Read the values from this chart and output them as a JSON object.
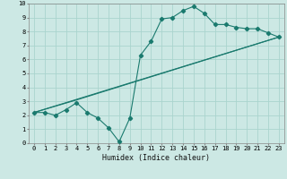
{
  "title": "",
  "xlabel": "Humidex (Indice chaleur)",
  "xlim": [
    -0.5,
    23.5
  ],
  "ylim": [
    0,
    10
  ],
  "bg_color": "#cce8e4",
  "grid_color": "#aad4ce",
  "line_color": "#1a7a6e",
  "line1_x": [
    0,
    1,
    2,
    3,
    4,
    5,
    6,
    7,
    8,
    9,
    10,
    11,
    12,
    13,
    14,
    15,
    16,
    17,
    18,
    19,
    20,
    21,
    22,
    23
  ],
  "line1_y": [
    2.2,
    2.2,
    2.0,
    2.4,
    2.9,
    2.2,
    1.8,
    1.1,
    0.1,
    1.8,
    6.3,
    7.3,
    8.9,
    9.0,
    9.5,
    9.8,
    9.3,
    8.5,
    8.5,
    8.3,
    8.2,
    8.2,
    7.9,
    7.6
  ],
  "line2_x": [
    0,
    23
  ],
  "line2_y": [
    2.2,
    7.6
  ],
  "line3_x": [
    0,
    4,
    23
  ],
  "line3_y": [
    2.2,
    3.1,
    7.6
  ],
  "xticks": [
    0,
    1,
    2,
    3,
    4,
    5,
    6,
    7,
    8,
    9,
    10,
    11,
    12,
    13,
    14,
    15,
    16,
    17,
    18,
    19,
    20,
    21,
    22,
    23
  ],
  "yticks": [
    0,
    1,
    2,
    3,
    4,
    5,
    6,
    7,
    8,
    9,
    10
  ],
  "tick_fontsize": 5.0,
  "xlabel_fontsize": 6.0
}
